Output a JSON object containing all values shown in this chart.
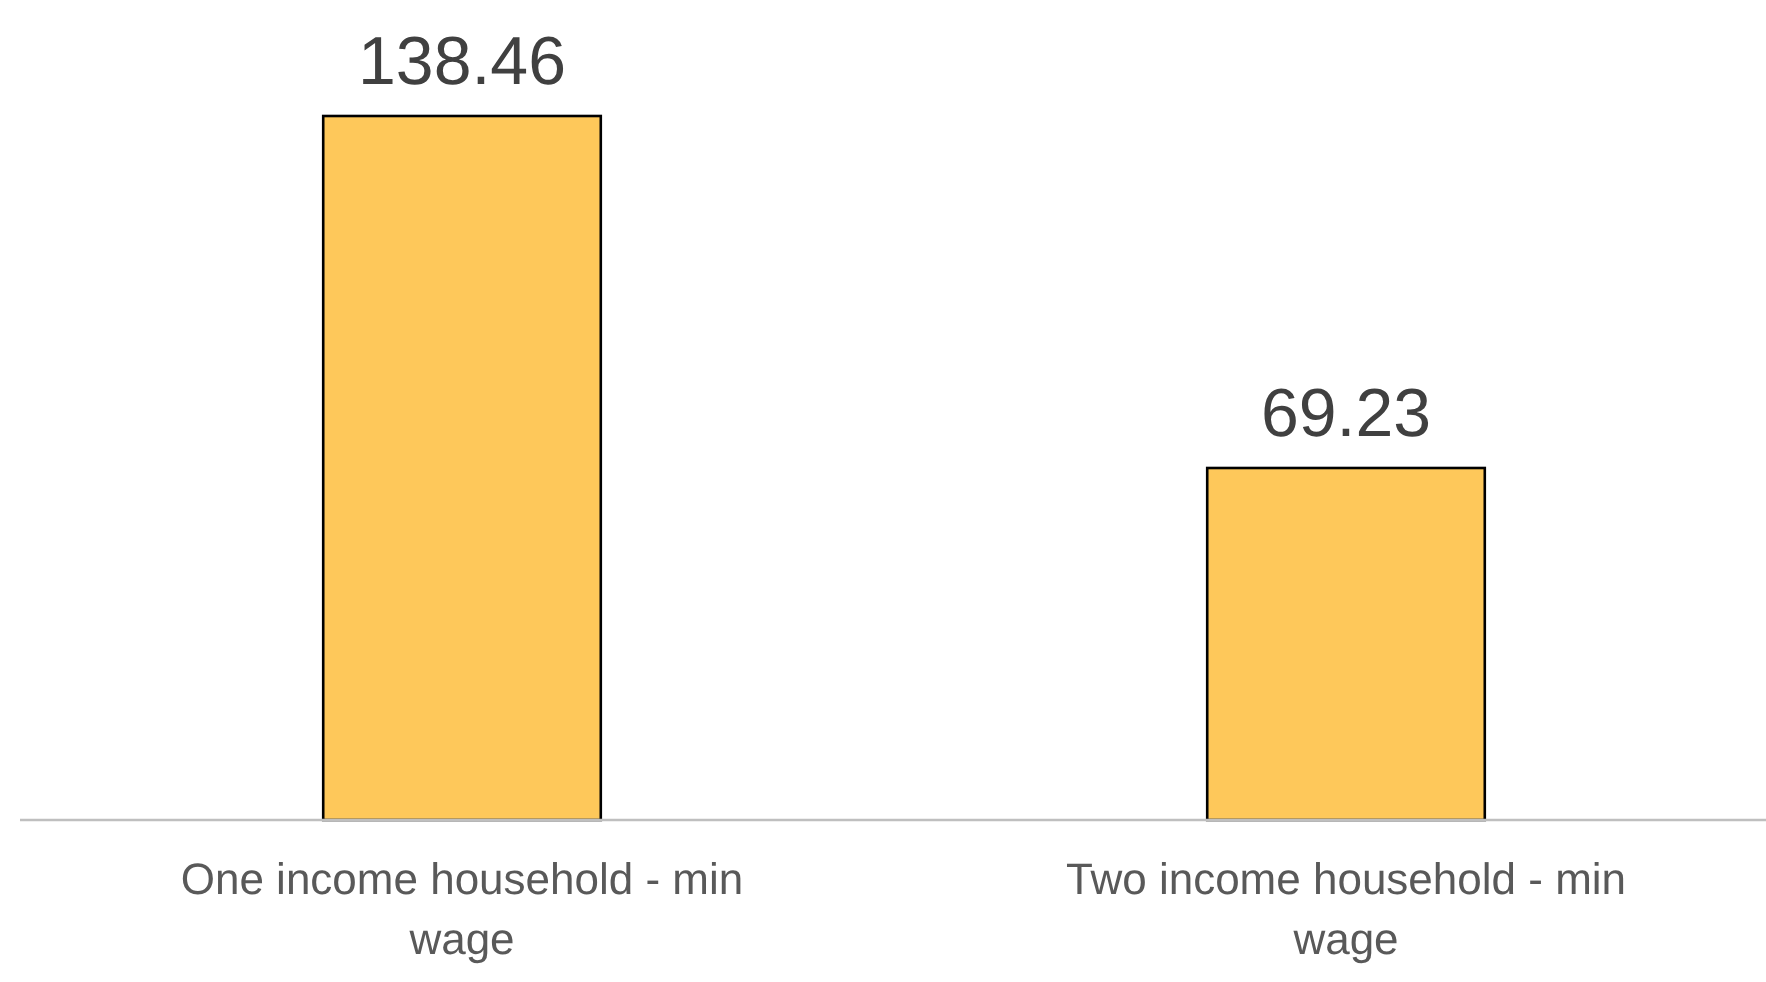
{
  "chart_data": {
    "type": "bar",
    "categories": [
      "One income household - min wage",
      "Two income household - min wage"
    ],
    "values": [
      138.46,
      69.23
    ],
    "color": "#fec85a",
    "data_labels": true
  }
}
